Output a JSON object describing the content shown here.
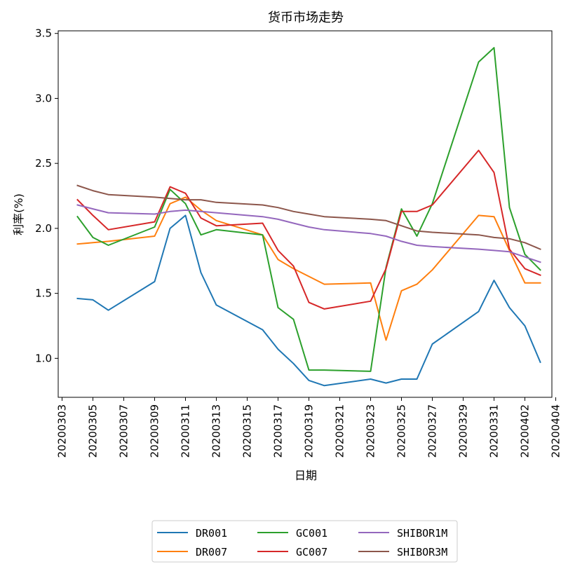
{
  "chart_data": {
    "type": "line",
    "title": "货币市场走势",
    "xlabel": "日期",
    "ylabel": "利率(%)",
    "ylim": [
      0.7,
      3.52
    ],
    "grid": false,
    "legend_placement": "bottom-center",
    "yticks": [
      1.0,
      1.5,
      2.0,
      2.5,
      3.0,
      3.5
    ],
    "ytick_labels": [
      "1.0",
      "1.5",
      "2.0",
      "2.5",
      "3.0",
      "3.5"
    ],
    "xtick_labels": [
      "20200303",
      "20200305",
      "20200307",
      "20200309",
      "20200311",
      "20200313",
      "20200315",
      "20200317",
      "20200319",
      "20200321",
      "20200323",
      "20200325",
      "20200327",
      "20200329",
      "20200331",
      "20200402",
      "20200404"
    ],
    "x": [
      "20200304",
      "20200305",
      "20200306",
      "20200309",
      "20200310",
      "20200311",
      "20200312",
      "20200313",
      "20200316",
      "20200317",
      "20200318",
      "20200319",
      "20200320",
      "20200323",
      "20200324",
      "20200325",
      "20200326",
      "20200327",
      "20200330",
      "20200331",
      "20200401",
      "20200402",
      "20200403"
    ],
    "series": [
      {
        "name": "DR001",
        "color": "#1f77b4",
        "values": [
          1.46,
          1.45,
          1.37,
          1.59,
          2.0,
          2.1,
          1.66,
          1.41,
          1.22,
          1.07,
          0.96,
          0.83,
          0.79,
          0.84,
          0.81,
          0.84,
          0.84,
          1.11,
          1.36,
          1.6,
          1.39,
          1.25,
          0.97
        ]
      },
      {
        "name": "DR007",
        "color": "#ff7f0e",
        "values": [
          1.88,
          1.89,
          1.9,
          1.94,
          2.19,
          2.24,
          2.14,
          2.06,
          1.95,
          1.76,
          1.69,
          1.63,
          1.57,
          1.58,
          1.14,
          1.52,
          1.57,
          1.68,
          2.1,
          2.09,
          1.83,
          1.58,
          1.58
        ]
      },
      {
        "name": "GC001",
        "color": "#2ca02c",
        "values": [
          2.09,
          1.93,
          1.87,
          2.01,
          2.3,
          2.19,
          1.95,
          1.99,
          1.95,
          1.39,
          1.3,
          0.91,
          0.91,
          0.9,
          1.7,
          2.15,
          1.94,
          2.19,
          3.28,
          3.39,
          2.16,
          1.8,
          1.68
        ]
      },
      {
        "name": "GC007",
        "color": "#d62728",
        "values": [
          2.22,
          2.1,
          1.99,
          2.05,
          2.32,
          2.27,
          2.08,
          2.02,
          2.04,
          1.83,
          1.71,
          1.43,
          1.38,
          1.44,
          1.69,
          2.13,
          2.13,
          2.18,
          2.6,
          2.43,
          1.84,
          1.69,
          1.64
        ]
      },
      {
        "name": "SHIBOR1M",
        "color": "#9467bd",
        "values": [
          2.18,
          2.15,
          2.12,
          2.11,
          2.13,
          2.14,
          2.13,
          2.12,
          2.09,
          2.07,
          2.04,
          2.01,
          1.99,
          1.96,
          1.94,
          1.9,
          1.87,
          1.86,
          1.84,
          1.83,
          1.82,
          1.78,
          1.74
        ]
      },
      {
        "name": "SHIBOR3M",
        "color": "#8c564b",
        "values": [
          2.33,
          2.29,
          2.26,
          2.24,
          2.23,
          2.22,
          2.22,
          2.2,
          2.18,
          2.16,
          2.13,
          2.11,
          2.09,
          2.07,
          2.06,
          2.02,
          1.98,
          1.97,
          1.95,
          1.93,
          1.92,
          1.89,
          1.84
        ]
      }
    ]
  }
}
